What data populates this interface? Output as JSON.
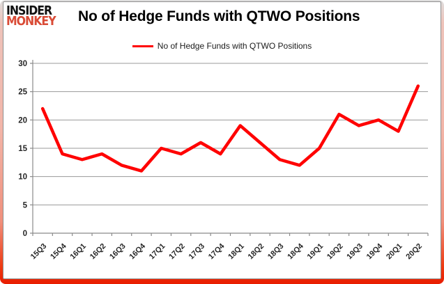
{
  "logo": {
    "line1": "INSIDER",
    "line2": "MONKEY"
  },
  "header": {
    "title": "No of Hedge Funds with QTWO Positions"
  },
  "legend": {
    "label": "No of Hedge Funds with QTWO Positions"
  },
  "colors": {
    "series_line": "#ff0000",
    "logo_red": "#d94b36",
    "grid": "#9a9a9a",
    "axis": "#8a8a8a",
    "tick_label": "#262626",
    "frame_bottom": "#e81c00"
  },
  "chart_data": {
    "type": "line",
    "title": "No of Hedge Funds with QTWO Positions",
    "series_name": "No of Hedge Funds with QTWO Positions",
    "categories": [
      "15Q3",
      "15Q4",
      "16Q1",
      "16Q2",
      "16Q3",
      "16Q4",
      "17Q1",
      "17Q2",
      "17Q3",
      "17Q4",
      "18Q1",
      "18Q2",
      "18Q3",
      "18Q4",
      "19Q1",
      "19Q2",
      "19Q3",
      "19Q4",
      "20Q1",
      "20Q2"
    ],
    "values": [
      22,
      14,
      13,
      14,
      12,
      11,
      15,
      14,
      16,
      14,
      19,
      16,
      13,
      12,
      15,
      21,
      19,
      20,
      18,
      26
    ],
    "ylim": [
      0,
      30
    ],
    "yticks": [
      0,
      5,
      10,
      15,
      20,
      25,
      30
    ],
    "grid": true,
    "legend_position": "top",
    "line_color": "#ff0000"
  }
}
